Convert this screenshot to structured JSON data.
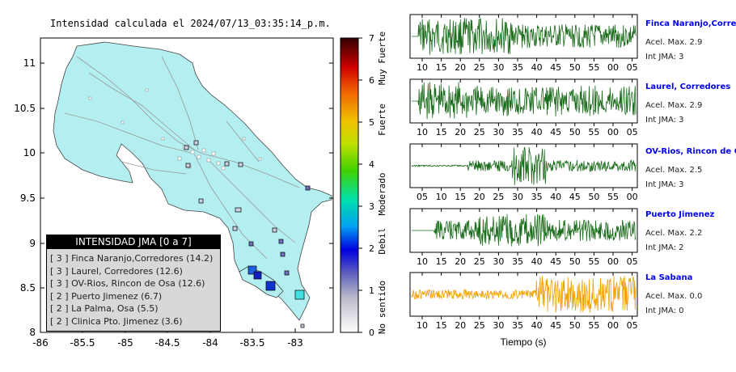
{
  "title": "Intensidad calculada el 2024/07/13_03:35:14_p.m.",
  "map": {
    "y_ticks": [
      "11",
      "10.5",
      "10",
      "9.5",
      "9",
      "8.5",
      "8"
    ],
    "x_ticks": [
      "-86",
      "-85.5",
      "-85",
      "-84.5",
      "-84",
      "-83.5",
      "-83"
    ]
  },
  "colorbar": {
    "ticks": [
      "7",
      "6",
      "5",
      "4",
      "3",
      "2",
      "1",
      "0"
    ],
    "labels": [
      "Muy Fuerte",
      "Fuerte",
      "Moderado",
      "Debil",
      "No sentido"
    ]
  },
  "legend": {
    "title": "INTENSIDAD JMA [0 a 7]",
    "items": [
      "[ 3 ]  Finca Naranjo,Corredores (14.2)",
      "[ 3 ]  Laurel, Corredores (12.6)",
      "[ 3 ]  OV-Rios, Rincon de Osa (12.6)",
      "[ 2 ]  Puerto Jimenez (6.7)",
      "[ 2 ]  La Palma, Osa (5.5)",
      "[ 2 ]  Clinica Pto. Jimenez (3.6)"
    ]
  },
  "stations": [
    {
      "name": "Finca Naranjo,Corredores",
      "accel": "Acel. Max. 2.9",
      "int": "Int JMA: 3",
      "color": "#1a6b1a",
      "ticks": [
        "10",
        "15",
        "20",
        "25",
        "30",
        "35",
        "40",
        "45",
        "50",
        "55",
        "00",
        "05"
      ]
    },
    {
      "name": "Laurel, Corredores",
      "accel": "Acel. Max. 2.9",
      "int": "Int JMA: 3",
      "color": "#1a6b1a",
      "ticks": [
        "10",
        "15",
        "20",
        "25",
        "30",
        "35",
        "40",
        "45",
        "50",
        "55",
        "00",
        "05"
      ]
    },
    {
      "name": "OV-Rios, Rincon de Os",
      "accel": "Acel. Max. 2.5",
      "int": "Int JMA: 3",
      "color": "#1a6b1a",
      "ticks": [
        "05",
        "10",
        "15",
        "20",
        "25",
        "30",
        "35",
        "40",
        "45",
        "50",
        "55",
        "00"
      ]
    },
    {
      "name": "Puerto Jimenez",
      "accel": "Acel. Max. 2.2",
      "int": "Int JMA: 2",
      "color": "#1a6b1a",
      "ticks": [
        "10",
        "15",
        "20",
        "25",
        "30",
        "35",
        "40",
        "45",
        "50",
        "55",
        "00",
        "05"
      ]
    },
    {
      "name": "La Sabana",
      "accel": "Acel. Max. 0.0",
      "int": "Int JMA: 0",
      "color": "#f0a000",
      "ticks": [
        "10",
        "15",
        "20",
        "25",
        "30",
        "35",
        "40",
        "45",
        "50",
        "55",
        "00",
        "05"
      ]
    }
  ],
  "xlabel": "Tiempo (s)"
}
